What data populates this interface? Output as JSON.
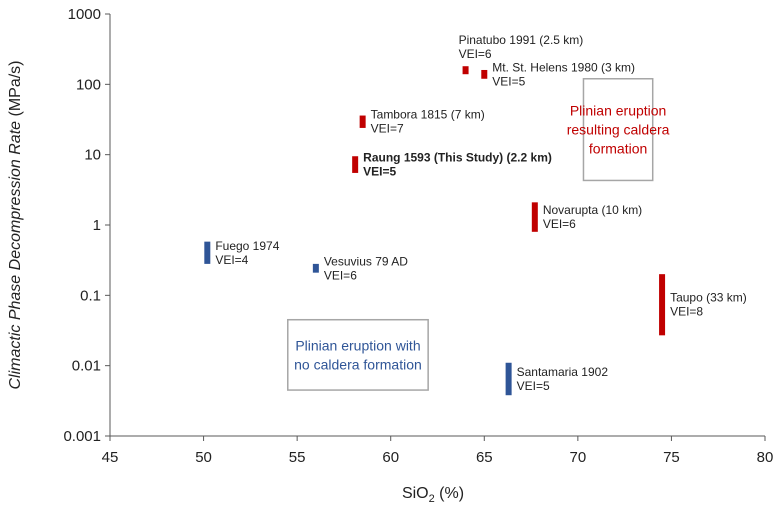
{
  "chart_data": {
    "type": "scatter",
    "x_axis": {
      "label_main": "SiO",
      "label_sub": "2",
      "label_unit": " (%)",
      "lim": [
        45,
        80
      ],
      "ticks": [
        45,
        50,
        55,
        60,
        65,
        70,
        75,
        80
      ]
    },
    "y_axis": {
      "label_italic": "Climactic Phase Decompression Rate",
      "label_unit": " (MPa/s)",
      "scale": "log",
      "lim": [
        0.001,
        1000
      ],
      "ticks": [
        0.001,
        0.01,
        0.1,
        1,
        10,
        100,
        1000
      ],
      "tick_labels": [
        "0.001",
        "0.01",
        "0.1",
        "1",
        "10",
        "100",
        "1000"
      ]
    },
    "grid": false,
    "colors": {
      "caldera": "#c00000",
      "no_caldera": "#2f5597",
      "box_border": "#a6a6a6"
    },
    "points": [
      {
        "x": 64.0,
        "y_low": 140,
        "y_high": 180,
        "group": "caldera",
        "label": "Pinatubo 1991 (2.5 km)",
        "label2": "VEI=6",
        "label_pos": "above",
        "bold": false
      },
      {
        "x": 65.0,
        "y_low": 120,
        "y_high": 160,
        "group": "caldera",
        "label": "Mt. St. Helens 1980 (3 km)",
        "label2": "VEI=5",
        "label_pos": "right",
        "bold": false
      },
      {
        "x": 58.5,
        "y_low": 24,
        "y_high": 36,
        "group": "caldera",
        "label": "Tambora 1815 (7 km)",
        "label2": "VEI=7",
        "label_pos": "right",
        "bold": false
      },
      {
        "x": 58.1,
        "y_low": 5.5,
        "y_high": 9.5,
        "group": "caldera",
        "label": "Raung 1593 (This Study) (2.2 km)",
        "label2": "VEI=5",
        "label_pos": "right",
        "bold": true
      },
      {
        "x": 67.7,
        "y_low": 0.8,
        "y_high": 2.1,
        "group": "caldera",
        "label": "Novarupta (10 km)",
        "label2": "VEI=6",
        "label_pos": "right",
        "bold": false
      },
      {
        "x": 74.5,
        "y_low": 0.027,
        "y_high": 0.2,
        "group": "caldera",
        "label": "Taupo (33 km)",
        "label2": "VEI=8",
        "label_pos": "right",
        "bold": false
      },
      {
        "x": 50.2,
        "y_low": 0.28,
        "y_high": 0.58,
        "group": "no_caldera",
        "label": "Fuego 1974",
        "label2": "VEI=4",
        "label_pos": "right",
        "bold": false
      },
      {
        "x": 56.0,
        "y_low": 0.21,
        "y_high": 0.28,
        "group": "no_caldera",
        "label": "Vesuvius 79 AD",
        "label2": "VEI=6",
        "label_pos": "right",
        "bold": false
      },
      {
        "x": 66.3,
        "y_low": 0.0038,
        "y_high": 0.011,
        "group": "no_caldera",
        "label": "Santamaria 1902",
        "label2": "VEI=5",
        "label_pos": "right",
        "bold": false
      }
    ],
    "annotations": [
      {
        "group": "caldera",
        "lines": [
          "Plinian eruption",
          "resulting caldera",
          "formation"
        ],
        "x_range": [
          70.3,
          74.0
        ],
        "y_range": [
          4.3,
          120
        ]
      },
      {
        "group": "no_caldera",
        "lines": [
          "Plinian eruption with",
          "no caldera formation"
        ],
        "x_range": [
          54.5,
          62.0
        ],
        "y_range": [
          0.0045,
          0.045
        ]
      }
    ]
  }
}
